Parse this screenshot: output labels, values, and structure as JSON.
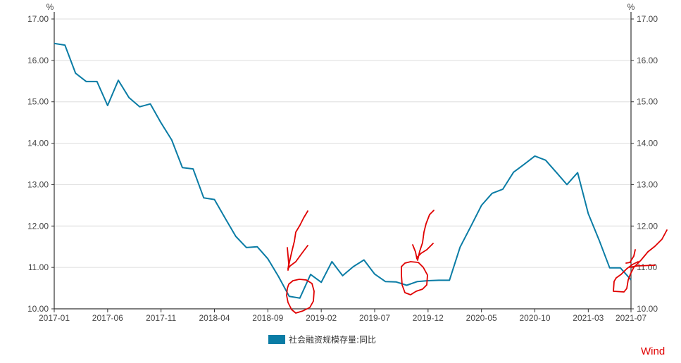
{
  "chart_data": {
    "type": "line",
    "title": "",
    "xlabel": "",
    "ylabel": "%",
    "y2label": "%",
    "ylim": [
      10,
      17
    ],
    "yticks": [
      "10.00",
      "11.00",
      "12.00",
      "13.00",
      "14.00",
      "15.00",
      "16.00",
      "17.00"
    ],
    "xticks": [
      "2017-01",
      "2017-06",
      "2017-11",
      "2018-04",
      "2018-09",
      "2019-02",
      "2019-07",
      "2019-12",
      "2020-05",
      "2020-10",
      "2021-03",
      "2021-07"
    ],
    "grid": true,
    "legend_position": "bottom",
    "x_start": "2017-01",
    "x_end": "2021-07",
    "series": [
      {
        "name": "社会融资规模存量:同比",
        "color": "#0a7ca5",
        "values": [
          16.41,
          16.37,
          15.69,
          15.49,
          15.49,
          14.91,
          15.52,
          15.1,
          14.88,
          14.95,
          14.49,
          14.08,
          13.41,
          13.38,
          12.68,
          12.64,
          12.19,
          11.75,
          11.48,
          11.5,
          11.21,
          10.78,
          10.3,
          10.26,
          10.83,
          10.64,
          11.14,
          10.8,
          11.02,
          11.18,
          10.84,
          10.66,
          10.65,
          10.57,
          10.66,
          10.68,
          10.69,
          10.69,
          11.49,
          11.99,
          12.5,
          12.79,
          12.89,
          13.3,
          13.49,
          13.69,
          13.59,
          13.3,
          13.0,
          13.29,
          12.3,
          11.67,
          10.99,
          10.99,
          10.7
        ]
      }
    ]
  },
  "colors": {
    "line": "#0a7ca5",
    "annotation": "#e00000",
    "grid": "#dddddd"
  },
  "watermark": "Wind"
}
